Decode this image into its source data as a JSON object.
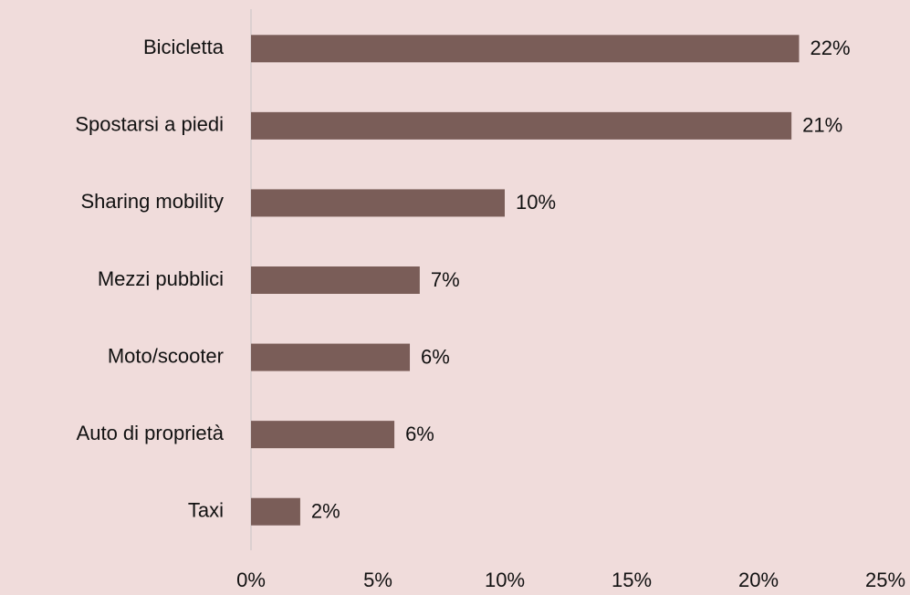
{
  "chart_data": {
    "type": "bar",
    "orientation": "horizontal",
    "categories": [
      "Bicicletta",
      "Spostarsi a piedi",
      "Sharing mobility",
      "Mezzi pubblici",
      "Moto/scooter",
      "Auto di proprietà",
      "Taxi"
    ],
    "values": [
      21.6,
      21.3,
      10,
      6.65,
      6.26,
      5.65,
      1.94
    ],
    "value_labels": [
      "22%",
      "21%",
      "10%",
      "7%",
      "6%",
      "6%",
      "2%"
    ],
    "color": "#7a5d58",
    "xlim": [
      0,
      25
    ],
    "xticks": [
      {
        "value": 0,
        "label": "0%"
      },
      {
        "value": 5,
        "label": "5%"
      },
      {
        "value": 10,
        "label": "10%"
      },
      {
        "value": 15,
        "label": "15%"
      },
      {
        "value": 20,
        "label": "20%"
      },
      {
        "value": 25,
        "label": "25%"
      }
    ],
    "grid": false
  }
}
